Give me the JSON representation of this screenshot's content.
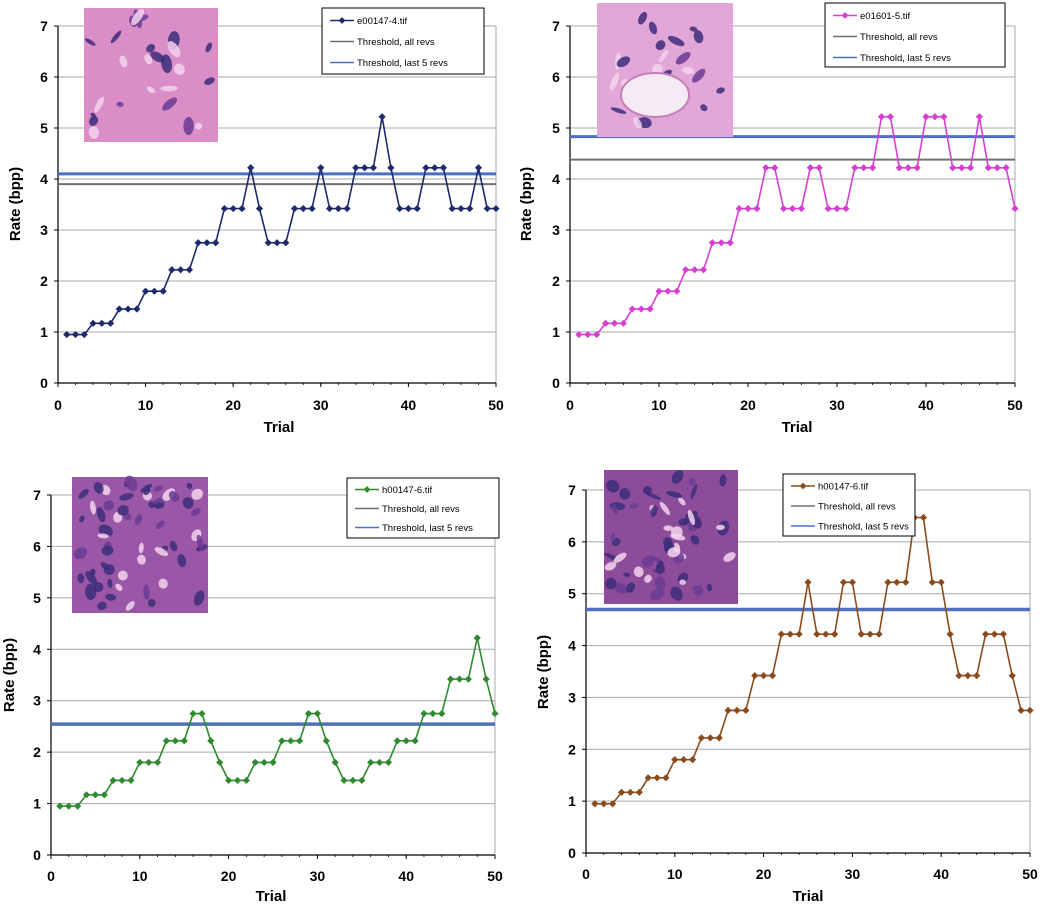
{
  "chart_data": [
    {
      "type": "line",
      "xlabel": "Trial",
      "ylabel": "Rate (bpp)",
      "xlim": [
        0,
        50
      ],
      "ylim": [
        0,
        7
      ],
      "xticks": [
        "0",
        "10",
        "20",
        "30",
        "40",
        "50"
      ],
      "yticks": [
        "0",
        "1",
        "2",
        "3",
        "4",
        "5",
        "6",
        "7"
      ],
      "grid": true,
      "legend_position": "top-right",
      "thumbnail": "tissue-image",
      "series": [
        {
          "name": "e00147-4.tif",
          "color": "#1f2a6b",
          "marker": "diamond",
          "x": [
            1,
            2,
            3,
            4,
            5,
            6,
            7,
            8,
            9,
            10,
            11,
            12,
            13,
            14,
            15,
            16,
            17,
            18,
            19,
            20,
            21,
            22,
            23,
            24,
            25,
            26,
            27,
            28,
            29,
            30,
            31,
            32,
            33,
            34,
            35,
            36,
            37,
            38,
            39,
            40,
            41,
            42,
            43,
            44,
            45,
            46,
            47,
            48,
            49,
            50
          ],
          "values": [
            0.95,
            0.95,
            0.95,
            1.17,
            1.17,
            1.17,
            1.45,
            1.45,
            1.45,
            1.8,
            1.8,
            1.8,
            2.22,
            2.22,
            2.22,
            2.75,
            2.75,
            2.75,
            3.42,
            3.42,
            3.42,
            4.22,
            3.42,
            2.75,
            2.75,
            2.75,
            3.42,
            3.42,
            3.42,
            4.22,
            3.42,
            3.42,
            3.42,
            4.22,
            4.22,
            4.22,
            5.22,
            4.22,
            3.42,
            3.42,
            3.42,
            4.22,
            4.22,
            4.22,
            3.42,
            3.42,
            3.42,
            4.22,
            3.42,
            3.42
          ]
        }
      ],
      "threshold_lines": [
        {
          "name": "Threshold, all revs",
          "value": 3.9,
          "color": "#707070"
        },
        {
          "name": "Threshold, last 5 revs",
          "value": 4.1,
          "color": "#4d6fc6"
        }
      ]
    },
    {
      "type": "line",
      "xlabel": "Trial",
      "ylabel": "Rate (bpp)",
      "xlim": [
        0,
        50
      ],
      "ylim": [
        0,
        7
      ],
      "xticks": [
        "0",
        "10",
        "20",
        "30",
        "40",
        "50"
      ],
      "yticks": [
        "0",
        "1",
        "2",
        "3",
        "4",
        "5",
        "6",
        "7"
      ],
      "grid": true,
      "legend_position": "top-right",
      "thumbnail": "tissue-image",
      "series": [
        {
          "name": "e01601-5.tif",
          "color": "#d63fd0",
          "marker": "diamond",
          "x": [
            1,
            2,
            3,
            4,
            5,
            6,
            7,
            8,
            9,
            10,
            11,
            12,
            13,
            14,
            15,
            16,
            17,
            18,
            19,
            20,
            21,
            22,
            23,
            24,
            25,
            26,
            27,
            28,
            29,
            30,
            31,
            32,
            33,
            34,
            35,
            36,
            37,
            38,
            39,
            40,
            41,
            42,
            43,
            44,
            45,
            46,
            47,
            48,
            49,
            50
          ],
          "values": [
            0.95,
            0.95,
            0.95,
            1.17,
            1.17,
            1.17,
            1.45,
            1.45,
            1.45,
            1.8,
            1.8,
            1.8,
            2.22,
            2.22,
            2.22,
            2.75,
            2.75,
            2.75,
            3.42,
            3.42,
            3.42,
            4.22,
            4.22,
            3.42,
            3.42,
            3.42,
            4.22,
            4.22,
            3.42,
            3.42,
            3.42,
            4.22,
            4.22,
            4.22,
            5.22,
            5.22,
            4.22,
            4.22,
            4.22,
            5.22,
            5.22,
            5.22,
            4.22,
            4.22,
            4.22,
            5.22,
            4.22,
            4.22,
            4.22,
            3.42
          ]
        }
      ],
      "threshold_lines": [
        {
          "name": "Threshold, all revs",
          "value": 4.38,
          "color": "#707070"
        },
        {
          "name": "Threshold, last 5 revs",
          "value": 4.83,
          "color": "#4d6fc6"
        }
      ]
    },
    {
      "type": "line",
      "xlabel": "Trial",
      "ylabel": "Rate (bpp)",
      "xlim": [
        0,
        50
      ],
      "ylim": [
        0,
        7
      ],
      "xticks": [
        "0",
        "10",
        "20",
        "30",
        "40",
        "50"
      ],
      "yticks": [
        "0",
        "1",
        "2",
        "3",
        "4",
        "5",
        "6",
        "7"
      ],
      "grid": true,
      "legend_position": "top-right",
      "thumbnail": "tissue-image",
      "series": [
        {
          "name": "h00147-6.tif",
          "color": "#2f8a2f",
          "marker": "diamond",
          "x": [
            1,
            2,
            3,
            4,
            5,
            6,
            7,
            8,
            9,
            10,
            11,
            12,
            13,
            14,
            15,
            16,
            17,
            18,
            19,
            20,
            21,
            22,
            23,
            24,
            25,
            26,
            27,
            28,
            29,
            30,
            31,
            32,
            33,
            34,
            35,
            36,
            37,
            38,
            39,
            40,
            41,
            42,
            43,
            44,
            45,
            46,
            47,
            48,
            49,
            50
          ],
          "values": [
            0.95,
            0.95,
            0.95,
            1.17,
            1.17,
            1.17,
            1.45,
            1.45,
            1.45,
            1.8,
            1.8,
            1.8,
            2.22,
            2.22,
            2.22,
            2.75,
            2.75,
            2.22,
            1.8,
            1.45,
            1.45,
            1.45,
            1.8,
            1.8,
            1.8,
            2.22,
            2.22,
            2.22,
            2.75,
            2.75,
            2.22,
            1.8,
            1.45,
            1.45,
            1.45,
            1.8,
            1.8,
            1.8,
            2.22,
            2.22,
            2.22,
            2.75,
            2.75,
            2.75,
            3.42,
            3.42,
            3.42,
            4.22,
            3.42,
            2.75
          ]
        }
      ],
      "threshold_lines": [
        {
          "name": "Threshold, all revs",
          "value": 2.53,
          "color": "#707070"
        },
        {
          "name": "Threshold, last 5 revs",
          "value": 2.55,
          "color": "#4d6fc6"
        }
      ]
    },
    {
      "type": "line",
      "xlabel": "Trial",
      "ylabel": "Rate (bpp)",
      "xlim": [
        0,
        50
      ],
      "ylim": [
        0,
        7
      ],
      "xticks": [
        "0",
        "10",
        "20",
        "30",
        "40",
        "50"
      ],
      "yticks": [
        "0",
        "1",
        "2",
        "3",
        "4",
        "5",
        "6",
        "7"
      ],
      "grid": true,
      "legend_position": "top-right",
      "thumbnail": "tissue-image",
      "series": [
        {
          "name": "h00147-6.tif",
          "color": "#8b4a1c",
          "marker": "diamond",
          "x": [
            1,
            2,
            3,
            4,
            5,
            6,
            7,
            8,
            9,
            10,
            11,
            12,
            13,
            14,
            15,
            16,
            17,
            18,
            19,
            20,
            21,
            22,
            23,
            24,
            25,
            26,
            27,
            28,
            29,
            30,
            31,
            32,
            33,
            34,
            35,
            36,
            37,
            38,
            39,
            40,
            41,
            42,
            43,
            44,
            45,
            46,
            47,
            48,
            49,
            50
          ],
          "values": [
            0.95,
            0.95,
            0.95,
            1.17,
            1.17,
            1.17,
            1.45,
            1.45,
            1.45,
            1.8,
            1.8,
            1.8,
            2.22,
            2.22,
            2.22,
            2.75,
            2.75,
            2.75,
            3.42,
            3.42,
            3.42,
            4.22,
            4.22,
            4.22,
            5.22,
            4.22,
            4.22,
            4.22,
            5.22,
            5.22,
            4.22,
            4.22,
            4.22,
            5.22,
            5.22,
            5.22,
            6.47,
            6.47,
            5.22,
            5.22,
            4.22,
            3.42,
            3.42,
            3.42,
            4.22,
            4.22,
            4.22,
            3.42,
            2.75,
            2.75
          ]
        }
      ],
      "threshold_lines": [
        {
          "name": "Threshold, all revs",
          "value": 4.68,
          "color": "#707070"
        },
        {
          "name": "Threshold, last 5 revs",
          "value": 4.7,
          "color": "#4d6fc6"
        }
      ]
    }
  ]
}
